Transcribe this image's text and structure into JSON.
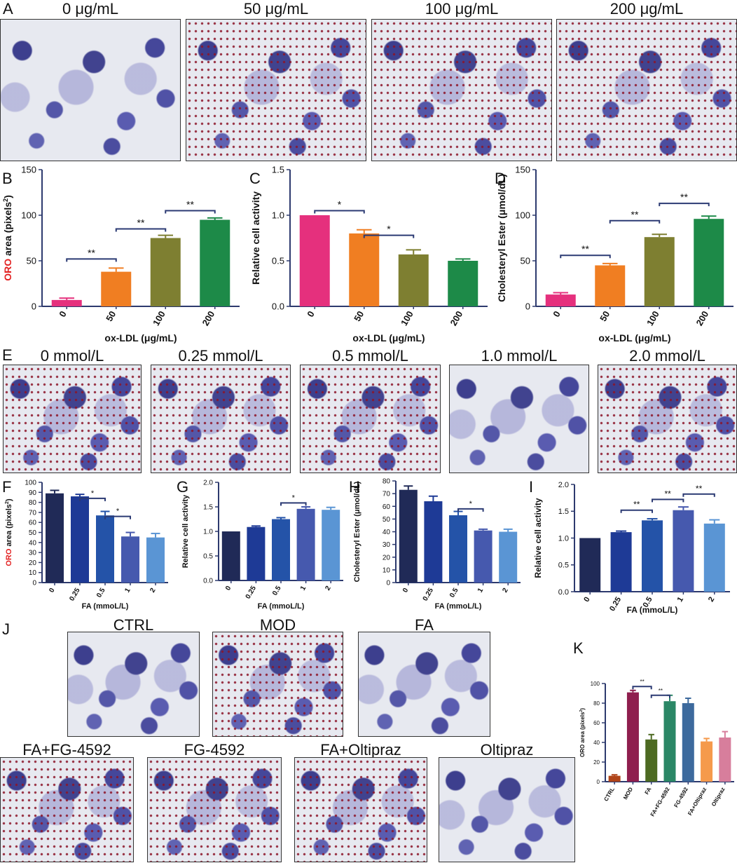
{
  "row1": {
    "panel": "A",
    "images": [
      {
        "label": "0 μg/mL",
        "lipid": false
      },
      {
        "label": "50 μg/mL",
        "lipid": true
      },
      {
        "label": "100 μg/mL",
        "lipid": true
      },
      {
        "label": "200 μg/mL",
        "lipid": true
      }
    ]
  },
  "row2": {
    "panel": "E",
    "images": [
      {
        "label": "0 mmol/L",
        "lipid": true
      },
      {
        "label": "0.25 mmol/L",
        "lipid": true
      },
      {
        "label": "0.5 mmol/L",
        "lipid": true
      },
      {
        "label": "1.0 mmol/L",
        "lipid": false
      },
      {
        "label": "2.0 mmol/L",
        "lipid": true
      }
    ]
  },
  "row3": {
    "panel": "J",
    "top_images": [
      {
        "label": "CTRL",
        "lipid": false
      },
      {
        "label": "MOD",
        "lipid": true
      },
      {
        "label": "FA",
        "lipid": false
      }
    ],
    "bottom_images": [
      {
        "label": "FA+FG-4592",
        "lipid": true
      },
      {
        "label": "FG-4592",
        "lipid": true
      },
      {
        "label": "FA+Oltipraz",
        "lipid": true
      },
      {
        "label": "Oltipraz",
        "lipid": false
      }
    ]
  },
  "colors": {
    "pink": "#e5307d",
    "orange": "#f07e22",
    "olive": "#7e7f31",
    "green": "#1d8a48",
    "navy1": "#202a57",
    "navy2": "#1e3a96",
    "blue3": "#2453a8",
    "blue4": "#4659ae",
    "blue5": "#5a95d4",
    "bracket": "#2b3a73",
    "axis": "#2d3a6e",
    "red": "#e32323"
  },
  "chart_data": [
    {
      "panel": "B",
      "type": "bar",
      "categories": [
        "0",
        "50",
        "100",
        "200"
      ],
      "values": [
        7,
        38,
        75,
        95
      ],
      "errors": [
        2,
        4,
        3,
        2
      ],
      "colors": [
        "#e5307d",
        "#f07e22",
        "#7e7f31",
        "#1d8a48"
      ],
      "ylabel_red": "ORO",
      "ylabel_rest": " area (pixels",
      "ylabel_sup": "2",
      "ylabel_close": ")",
      "xlabel": "ox-LDL (μg/mL)",
      "ylim": [
        0,
        150
      ],
      "yticks": [
        "0",
        "50",
        "100",
        "150"
      ],
      "brackets": [
        {
          "from": 0,
          "to": 1,
          "level": 52,
          "label": "**"
        },
        {
          "from": 1,
          "to": 2,
          "level": 85,
          "label": "**"
        },
        {
          "from": 2,
          "to": 3,
          "level": 105,
          "label": "**"
        }
      ]
    },
    {
      "panel": "C",
      "type": "bar",
      "categories": [
        "0",
        "50",
        "100",
        "200"
      ],
      "values": [
        1.0,
        0.8,
        0.57,
        0.5
      ],
      "errors": [
        0,
        0.04,
        0.05,
        0.02
      ],
      "colors": [
        "#e5307d",
        "#f07e22",
        "#7e7f31",
        "#1d8a48"
      ],
      "ylabel": "Relative cell activity",
      "xlabel": "ox-LDL (μg/mL)",
      "ylim": [
        0,
        1.5
      ],
      "yticks": [
        "0.0",
        "0.5",
        "1.0",
        "1.5"
      ],
      "brackets": [
        {
          "from": 0,
          "to": 1,
          "level": 1.05,
          "label": "*"
        },
        {
          "from": 1,
          "to": 2,
          "level": 0.78,
          "label": "*"
        }
      ]
    },
    {
      "panel": "D",
      "type": "bar",
      "categories": [
        "0",
        "50",
        "100",
        "200"
      ],
      "values": [
        13,
        45,
        76,
        96
      ],
      "errors": [
        2,
        2,
        3,
        3
      ],
      "colors": [
        "#e5307d",
        "#f07e22",
        "#7e7f31",
        "#1d8a48"
      ],
      "ylabel": "Cholesteryl Ester (μmol/dL)",
      "xlabel": "ox-LDL (μg/mL)",
      "ylim": [
        0,
        150
      ],
      "yticks": [
        "0",
        "50",
        "100",
        "150"
      ],
      "brackets": [
        {
          "from": 0,
          "to": 1,
          "level": 56,
          "label": "**"
        },
        {
          "from": 1,
          "to": 2,
          "level": 94,
          "label": "**"
        },
        {
          "from": 2,
          "to": 3,
          "level": 113,
          "label": "**"
        }
      ]
    },
    {
      "panel": "F",
      "type": "bar",
      "categories": [
        "0",
        "0.25",
        "0.5",
        "1",
        "2"
      ],
      "values": [
        89,
        86,
        67,
        46,
        45
      ],
      "errors": [
        3,
        2,
        4,
        4,
        4
      ],
      "colors": [
        "#202a57",
        "#1e3a96",
        "#2453a8",
        "#4659ae",
        "#5a95d4"
      ],
      "ylabel_red": "ORO",
      "ylabel_rest": " area (pixels",
      "ylabel_sup": "2",
      "ylabel_close": ")",
      "xlabel": "FA (mmoL/L)",
      "ylim": [
        0,
        100
      ],
      "yticks": [
        "0",
        "10",
        "20",
        "30",
        "40",
        "50",
        "60",
        "70",
        "80",
        "90",
        "100"
      ],
      "brackets": [
        {
          "from": 1,
          "to": 2,
          "level": 84,
          "label": "*"
        },
        {
          "from": 2,
          "to": 3,
          "level": 66,
          "label": "*"
        }
      ]
    },
    {
      "panel": "G",
      "type": "bar",
      "categories": [
        "0",
        "0.25",
        "0.5",
        "1",
        "2"
      ],
      "values": [
        1.0,
        1.09,
        1.25,
        1.46,
        1.44
      ],
      "errors": [
        0,
        0.02,
        0.03,
        0.04,
        0.05
      ],
      "colors": [
        "#202a57",
        "#1e3a96",
        "#2453a8",
        "#4659ae",
        "#5a95d4"
      ],
      "ylabel": "Relative cell activity",
      "xlabel": "FA (mmoL/L)",
      "ylim": [
        0,
        2.0
      ],
      "yticks": [
        "0.0",
        "0.5",
        "1.0",
        "1.5",
        "2.0"
      ],
      "brackets": [
        {
          "from": 2,
          "to": 3,
          "level": 1.58,
          "label": "*"
        }
      ]
    },
    {
      "panel": "H",
      "type": "bar",
      "categories": [
        "0",
        "0.25",
        "0.5",
        "1",
        "2"
      ],
      "values": [
        73,
        64,
        53,
        41,
        40
      ],
      "errors": [
        3,
        4,
        3,
        1,
        2
      ],
      "colors": [
        "#202a57",
        "#1e3a96",
        "#2453a8",
        "#4659ae",
        "#5a95d4"
      ],
      "ylabel": "Cholesteryl Ester (μmol/dL)",
      "xlabel": "FA (mmoL/L)",
      "ylim": [
        0,
        80
      ],
      "yticks": [
        "0",
        "10",
        "20",
        "30",
        "40",
        "50",
        "60",
        "70",
        "80"
      ],
      "brackets": [
        {
          "from": 2,
          "to": 3,
          "level": 58,
          "label": "*"
        }
      ]
    },
    {
      "panel": "I",
      "type": "bar",
      "categories": [
        "0",
        "0.25",
        "0.5",
        "1",
        "2"
      ],
      "values": [
        1.0,
        1.11,
        1.33,
        1.52,
        1.27
      ],
      "errors": [
        0,
        0.02,
        0.03,
        0.06,
        0.07
      ],
      "colors": [
        "#202a57",
        "#1e3a96",
        "#2453a8",
        "#4659ae",
        "#5a95d4"
      ],
      "ylabel": "Relative cell activity",
      "xlabel": "FA (mmoL/L)",
      "ylim": [
        0,
        2.0
      ],
      "yticks": [
        "0.0",
        "0.5",
        "1.0",
        "1.5",
        "2.0"
      ],
      "brackets": [
        {
          "from": 1,
          "to": 2,
          "level": 1.52,
          "label": "**"
        },
        {
          "from": 2,
          "to": 3,
          "level": 1.72,
          "label": "**"
        },
        {
          "from": 3,
          "to": 4,
          "level": 1.82,
          "label": "**"
        }
      ]
    },
    {
      "panel": "K",
      "type": "bar",
      "categories": [
        "CTRL",
        "MOD",
        "FA",
        "FA+FG-4592",
        "FG-4592",
        "FA+Oltipraz",
        "Oltipraz"
      ],
      "values": [
        6,
        91,
        43,
        82,
        80,
        41,
        45
      ],
      "errors": [
        1,
        2,
        5,
        6,
        5,
        3,
        6
      ],
      "colors": [
        "#b04419",
        "#8f1f4e",
        "#4d6a22",
        "#2b8766",
        "#3d6a9d",
        "#f59a4c",
        "#d77e9c"
      ],
      "ylabel_red": "",
      "ylabel_rest": "ORO area (pixels",
      "ylabel_sup": "2",
      "ylabel_close": ")",
      "xlabel": "",
      "ylim": [
        0,
        100
      ],
      "yticks": [
        "0",
        "20",
        "40",
        "60",
        "80",
        "100"
      ],
      "brackets": [
        {
          "from": 1,
          "to": 2,
          "level": 97,
          "label": "**"
        },
        {
          "from": 2,
          "to": 3,
          "level": 88,
          "label": "**"
        }
      ]
    }
  ]
}
